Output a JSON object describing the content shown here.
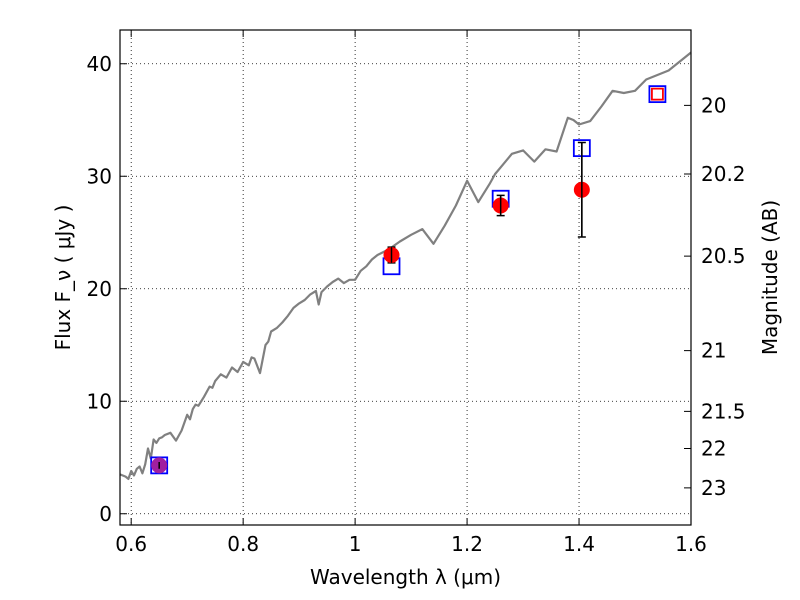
{
  "chart_data": {
    "type": "scatter",
    "xlabel": "Wavelength  λ (μm)",
    "ylabel": "Flux  F_ν  ( μJy )",
    "ylabel_right": "Magnitude (AB)",
    "xlim": [
      0.58,
      1.6
    ],
    "ylim": [
      -1,
      43
    ],
    "grid": true,
    "x_ticks": [
      {
        "value": 0.6,
        "label": "0.6"
      },
      {
        "value": 0.8,
        "label": "0.8"
      },
      {
        "value": 1.0,
        "label": "1"
      },
      {
        "value": 1.2,
        "label": "1.2"
      },
      {
        "value": 1.4,
        "label": "1.4"
      },
      {
        "value": 1.6,
        "label": "1.6"
      }
    ],
    "y_ticks": [
      {
        "value": 0,
        "label": "0"
      },
      {
        "value": 10,
        "label": "10"
      },
      {
        "value": 20,
        "label": "20"
      },
      {
        "value": 30,
        "label": "30"
      },
      {
        "value": 40,
        "label": "40"
      }
    ],
    "magnitude_ticks": [
      {
        "flux": 36.3,
        "label": "20"
      },
      {
        "flux": 30.2,
        "label": "20.2"
      },
      {
        "flux": 22.9,
        "label": "20.5"
      },
      {
        "flux": 14.5,
        "label": "21"
      },
      {
        "flux": 9.1,
        "label": "21.5"
      },
      {
        "flux": 5.8,
        "label": "22"
      },
      {
        "flux": 2.3,
        "label": "23"
      }
    ],
    "model_spectrum": {
      "color": "#808080",
      "x": [
        0.58,
        0.59,
        0.595,
        0.6,
        0.605,
        0.61,
        0.615,
        0.62,
        0.625,
        0.63,
        0.635,
        0.64,
        0.645,
        0.65,
        0.655,
        0.66,
        0.67,
        0.68,
        0.69,
        0.7,
        0.705,
        0.71,
        0.715,
        0.72,
        0.73,
        0.74,
        0.745,
        0.75,
        0.76,
        0.77,
        0.78,
        0.79,
        0.8,
        0.81,
        0.815,
        0.82,
        0.83,
        0.84,
        0.845,
        0.85,
        0.86,
        0.87,
        0.88,
        0.89,
        0.9,
        0.91,
        0.92,
        0.93,
        0.935,
        0.94,
        0.95,
        0.96,
        0.97,
        0.98,
        0.99,
        1.0,
        1.01,
        1.02,
        1.03,
        1.04,
        1.06,
        1.08,
        1.1,
        1.12,
        1.14,
        1.16,
        1.18,
        1.2,
        1.22,
        1.24,
        1.25,
        1.26,
        1.28,
        1.3,
        1.32,
        1.34,
        1.36,
        1.38,
        1.39,
        1.4,
        1.42,
        1.44,
        1.46,
        1.48,
        1.5,
        1.52,
        1.54,
        1.56,
        1.58,
        1.6
      ],
      "y": [
        3.5,
        3.3,
        3.1,
        3.8,
        3.4,
        4.0,
        4.2,
        3.6,
        4.4,
        5.8,
        4.9,
        6.6,
        6.3,
        6.7,
        6.8,
        7.0,
        7.2,
        6.5,
        7.4,
        8.8,
        8.4,
        9.3,
        9.7,
        9.6,
        10.4,
        11.3,
        11.2,
        11.8,
        12.4,
        12.1,
        13.0,
        12.6,
        13.5,
        13.2,
        13.9,
        13.8,
        12.5,
        15.0,
        15.3,
        16.2,
        16.5,
        17.0,
        17.6,
        18.3,
        18.7,
        19.0,
        19.5,
        19.8,
        18.6,
        19.7,
        20.2,
        20.6,
        20.9,
        20.5,
        20.8,
        20.8,
        21.6,
        22.0,
        22.6,
        23.0,
        23.5,
        24.2,
        24.8,
        25.3,
        24.0,
        25.6,
        27.4,
        29.6,
        27.7,
        29.3,
        30.2,
        30.8,
        32.0,
        32.3,
        31.3,
        32.4,
        32.2,
        35.2,
        35.0,
        34.6,
        34.9,
        36.2,
        37.6,
        37.4,
        37.6,
        38.6,
        39.0,
        39.4,
        40.2,
        41.0
      ]
    },
    "observed": {
      "color": "#ff0000",
      "points": [
        {
          "x": 0.65,
          "y": 4.3,
          "err": 0.3,
          "color": "#a020a0"
        },
        {
          "x": 1.065,
          "y": 23.0,
          "err": 0.7,
          "color": "#ff0000"
        },
        {
          "x": 1.26,
          "y": 27.4,
          "err": 0.9,
          "color": "#ff0000"
        },
        {
          "x": 1.405,
          "y": 28.8,
          "err": 4.2,
          "color": "#ff0000"
        }
      ]
    },
    "synthetic": {
      "points": [
        {
          "x": 0.65,
          "y": 4.3,
          "color": "#0000ff"
        },
        {
          "x": 1.065,
          "y": 22.0,
          "color": "#0000ff"
        },
        {
          "x": 1.26,
          "y": 28.0,
          "color": "#0000ff"
        },
        {
          "x": 1.405,
          "y": 32.5,
          "color": "#0000ff"
        },
        {
          "x": 1.54,
          "y": 37.3,
          "color": "#0000ff"
        },
        {
          "x": 1.54,
          "y": 37.3,
          "color": "#ff0000",
          "inner": true
        }
      ]
    }
  }
}
